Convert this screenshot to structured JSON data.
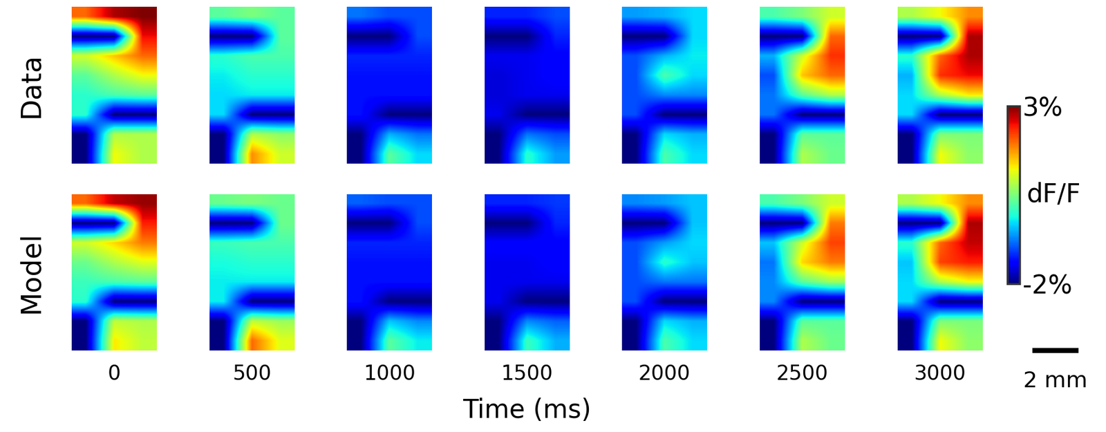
{
  "chart_data": {
    "type": "heatmap",
    "color": "jet",
    "tick_labels": false,
    "times": [
      0,
      500,
      1000,
      1500,
      2000,
      2500,
      3000
    ],
    "xlabel": "Time (ms)",
    "rows": [
      {
        "label": "Data",
        "frames": [
          [
            [
              2.0,
              2.8,
              3.0
            ],
            [
              -2,
              -2,
              2.5
            ],
            [
              1.0,
              1.5,
              2.0
            ],
            [
              0.3,
              0.8,
              1.2
            ],
            [
              0.0,
              0.2,
              0.3
            ],
            [
              0.0,
              -2,
              -2
            ],
            [
              -2,
              0.8,
              0.8
            ],
            [
              -2,
              1.2,
              0.8
            ]
          ],
          [
            [
              0.3,
              0.5,
              0.3
            ],
            [
              -2,
              -2,
              0.3
            ],
            [
              0.0,
              0.2,
              0.2
            ],
            [
              -0.2,
              0.0,
              0.0
            ],
            [
              -0.3,
              -0.2,
              -0.2
            ],
            [
              -0.3,
              -2,
              -2
            ],
            [
              -2,
              0.8,
              0.6
            ],
            [
              -2,
              1.8,
              1.0
            ]
          ],
          [
            [
              -0.8,
              -1.0,
              -1.0
            ],
            [
              -2,
              -2,
              -1.0
            ],
            [
              -1.2,
              -1.2,
              -1.2
            ],
            [
              -1.3,
              -1.3,
              -1.3
            ],
            [
              -1.3,
              -1.3,
              -1.3
            ],
            [
              -1.3,
              -2,
              -2
            ],
            [
              -2,
              -0.5,
              -0.8
            ],
            [
              -2,
              0.3,
              -0.3
            ]
          ],
          [
            [
              -1.2,
              -1.2,
              -1.0
            ],
            [
              -2,
              -2,
              -1.2
            ],
            [
              -1.5,
              -1.5,
              -1.4
            ],
            [
              -1.6,
              -1.5,
              -1.4
            ],
            [
              -1.6,
              -1.5,
              -1.5
            ],
            [
              -1.5,
              -2,
              -2
            ],
            [
              -2,
              -0.8,
              -1.0
            ],
            [
              -2,
              0.0,
              -0.6
            ]
          ],
          [
            [
              -0.6,
              -0.5,
              -0.3
            ],
            [
              -2,
              -2,
              -0.3
            ],
            [
              -1.0,
              -0.5,
              -0.2
            ],
            [
              -1.0,
              0.2,
              -0.3
            ],
            [
              -1.0,
              -0.7,
              -0.7
            ],
            [
              -1.0,
              -2,
              -2
            ],
            [
              -2,
              -0.3,
              -0.5
            ],
            [
              -2,
              0.2,
              -0.3
            ]
          ],
          [
            [
              0.2,
              0.5,
              1.0
            ],
            [
              -2,
              -2,
              2.0
            ],
            [
              -0.5,
              1.0,
              2.3
            ],
            [
              -1.0,
              1.5,
              2.0
            ],
            [
              -0.8,
              0.3,
              0.8
            ],
            [
              -0.8,
              -2,
              -2
            ],
            [
              -2,
              0.3,
              0.3
            ],
            [
              -2,
              0.8,
              0.4
            ]
          ],
          [
            [
              0.8,
              1.2,
              1.8
            ],
            [
              -2,
              -2,
              2.8
            ],
            [
              0.0,
              2.0,
              2.8
            ],
            [
              -0.5,
              2.3,
              2.5
            ],
            [
              -0.3,
              0.8,
              1.3
            ],
            [
              -0.3,
              -2,
              -2
            ],
            [
              -2,
              0.5,
              0.5
            ],
            [
              -2,
              1.2,
              0.6
            ]
          ]
        ]
      },
      {
        "label": "Model",
        "frames": [
          [
            [
              2.0,
              2.7,
              2.9
            ],
            [
              -2,
              -2,
              2.4
            ],
            [
              1.0,
              1.4,
              1.9
            ],
            [
              0.4,
              0.8,
              1.1
            ],
            [
              0.1,
              0.2,
              0.3
            ],
            [
              0.0,
              -2,
              -2
            ],
            [
              -2,
              0.9,
              0.8
            ],
            [
              -2,
              1.3,
              0.9
            ]
          ],
          [
            [
              0.4,
              0.5,
              0.4
            ],
            [
              -2,
              -2,
              0.4
            ],
            [
              0.1,
              0.2,
              0.2
            ],
            [
              -0.1,
              0.0,
              0.0
            ],
            [
              -0.2,
              -0.2,
              -0.2
            ],
            [
              -0.2,
              -2,
              -2
            ],
            [
              -2,
              0.9,
              0.7
            ],
            [
              -2,
              2.0,
              1.1
            ]
          ],
          [
            [
              -0.9,
              -1.0,
              -1.0
            ],
            [
              -2,
              -2,
              -1.0
            ],
            [
              -1.2,
              -1.2,
              -1.2
            ],
            [
              -1.3,
              -1.3,
              -1.3
            ],
            [
              -1.3,
              -1.3,
              -1.3
            ],
            [
              -1.3,
              -2,
              -2
            ],
            [
              -2,
              -0.4,
              -0.7
            ],
            [
              -2,
              0.3,
              -0.2
            ]
          ],
          [
            [
              -1.2,
              -1.2,
              -1.1
            ],
            [
              -2,
              -2,
              -1.2
            ],
            [
              -1.4,
              -1.4,
              -1.4
            ],
            [
              -1.5,
              -1.5,
              -1.4
            ],
            [
              -1.5,
              -1.5,
              -1.5
            ],
            [
              -1.5,
              -2,
              -2
            ],
            [
              -2,
              -0.7,
              -0.9
            ],
            [
              -2,
              0.1,
              -0.5
            ]
          ],
          [
            [
              -0.7,
              -0.6,
              -0.4
            ],
            [
              -2,
              -2,
              -0.4
            ],
            [
              -1.0,
              -0.6,
              -0.3
            ],
            [
              -1.0,
              0.0,
              -0.4
            ],
            [
              -1.0,
              -0.8,
              -0.8
            ],
            [
              -1.0,
              -2,
              -2
            ],
            [
              -2,
              -0.3,
              -0.5
            ],
            [
              -2,
              0.2,
              -0.3
            ]
          ],
          [
            [
              0.2,
              0.5,
              1.0
            ],
            [
              -2,
              -2,
              1.9
            ],
            [
              -0.4,
              1.0,
              2.2
            ],
            [
              -0.8,
              1.4,
              1.9
            ],
            [
              -0.7,
              0.3,
              0.7
            ],
            [
              -0.7,
              -2,
              -2
            ],
            [
              -2,
              0.3,
              0.3
            ],
            [
              -2,
              0.8,
              0.4
            ]
          ],
          [
            [
              0.8,
              1.2,
              1.8
            ],
            [
              -2,
              -2,
              2.8
            ],
            [
              0.0,
              2.0,
              2.7
            ],
            [
              -0.4,
              2.2,
              2.4
            ],
            [
              -0.3,
              0.8,
              1.2
            ],
            [
              -0.3,
              -2,
              -2
            ],
            [
              -2,
              0.5,
              0.5
            ],
            [
              -2,
              1.2,
              0.6
            ]
          ]
        ]
      }
    ],
    "colorbar": {
      "range": [
        -2,
        3
      ],
      "label": "dF/F",
      "ticks": [
        {
          "value": 3,
          "label": "3%"
        },
        {
          "value": -2,
          "label": "-2%"
        }
      ]
    },
    "scale_bar": "2 mm"
  }
}
